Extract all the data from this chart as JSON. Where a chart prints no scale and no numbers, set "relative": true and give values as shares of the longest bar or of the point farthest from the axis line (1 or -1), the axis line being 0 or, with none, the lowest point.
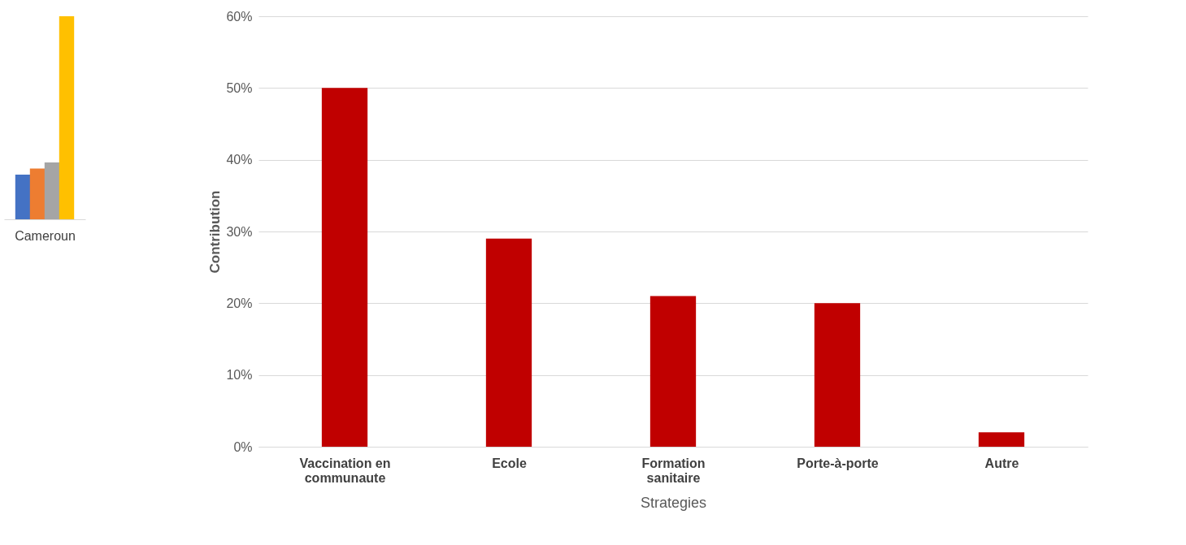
{
  "chart_data": [
    {
      "type": "bar",
      "relative": true,
      "categories": [
        "Cameroun"
      ],
      "series": [
        {
          "color": "#4472c4",
          "values": [
            0.22
          ]
        },
        {
          "color": "#ed7d31",
          "values": [
            0.25
          ]
        },
        {
          "color": "#a5a5a5",
          "values": [
            0.28
          ]
        },
        {
          "color": "#ffc000",
          "values": [
            1
          ]
        }
      ],
      "grid": false,
      "legend": false
    },
    {
      "type": "bar",
      "xlabel": "Strategies",
      "ylabel": "Contribution",
      "categories": [
        "Vaccination en communaute",
        "Ecole",
        "Formation sanitaire",
        "Porte-à-porte",
        "Autre"
      ],
      "series": [
        {
          "color": "#c00000",
          "values": [
            50,
            29,
            21,
            20,
            2
          ]
        }
      ],
      "ylim": [
        0,
        60
      ],
      "yticks": [
        {
          "value": 0,
          "label": "0%"
        },
        {
          "value": 10,
          "label": "10%"
        },
        {
          "value": 20,
          "label": "20%"
        },
        {
          "value": 30,
          "label": "30%"
        },
        {
          "value": 40,
          "label": "40%"
        },
        {
          "value": 50,
          "label": "50%"
        },
        {
          "value": 60,
          "label": "60%"
        }
      ],
      "grid": "y",
      "legend": false
    }
  ]
}
